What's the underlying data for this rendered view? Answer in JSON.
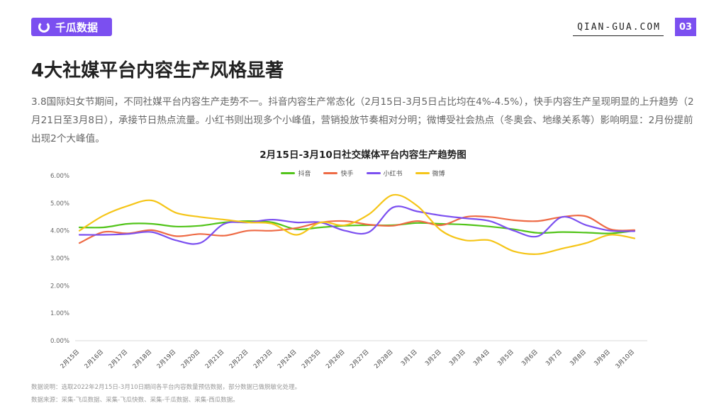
{
  "header": {
    "brand": "千瓜数据",
    "site": "QIAN-GUA.COM",
    "page_number": "03",
    "accent_color": "#7b4ff0"
  },
  "page": {
    "title": "4大社媒平台内容生产风格显著",
    "description": "3.8国际妇女节期间，不同社媒平台内容生产走势不一。抖音内容生产常态化（2月15日-3月5日占比均在4%-4.5%），快手内容生产呈现明显的上升趋势（2月21日至3月8日），承接节日热点流量。小红书则出现多个小峰值，营销投放节奏相对分明；微博受社会热点（冬奥会、地缘关系等）影响明显：2月份提前出现2个大峰值。"
  },
  "chart_data": {
    "type": "line",
    "title": "2月15日-3月10日社交媒体平台内容生产趋势图",
    "categories": [
      "2月15日",
      "2月16日",
      "2月17日",
      "2月18日",
      "2月19日",
      "2月20日",
      "2月21日",
      "2月22日",
      "2月23日",
      "2月24日",
      "2月25日",
      "2月26日",
      "2月27日",
      "2月28日",
      "3月1日",
      "3月2日",
      "3月3日",
      "3月4日",
      "3月5日",
      "3月6日",
      "3月7日",
      "3月8日",
      "3月9日",
      "3月10日"
    ],
    "yticks": [
      "0.00%",
      "1.00%",
      "2.00%",
      "3.00%",
      "4.00%",
      "5.00%",
      "6.00%"
    ],
    "ylim": [
      0,
      6
    ],
    "grid": false,
    "legend_position": "top-center",
    "series": [
      {
        "name": "抖音",
        "color": "#52c41a",
        "values": [
          4.12,
          4.12,
          4.25,
          4.25,
          4.15,
          4.18,
          4.3,
          4.35,
          4.3,
          4.05,
          4.12,
          4.18,
          4.2,
          4.2,
          4.28,
          4.25,
          4.22,
          4.15,
          4.05,
          3.92,
          3.95,
          3.93,
          3.9,
          4.0
        ]
      },
      {
        "name": "快手",
        "color": "#ee6a45",
        "values": [
          3.55,
          3.95,
          3.9,
          4.02,
          3.8,
          3.88,
          3.82,
          4.0,
          4.0,
          4.1,
          4.3,
          4.35,
          4.22,
          4.18,
          4.35,
          4.2,
          4.5,
          4.5,
          4.38,
          4.35,
          4.5,
          4.52,
          4.05,
          4.02
        ]
      },
      {
        "name": "小红书",
        "color": "#7b4ff0",
        "values": [
          3.85,
          3.85,
          3.88,
          3.95,
          3.65,
          3.55,
          4.25,
          4.3,
          4.4,
          4.3,
          4.3,
          4.0,
          3.95,
          4.85,
          4.7,
          4.55,
          4.45,
          4.35,
          4.0,
          3.8,
          4.5,
          4.2,
          4.0,
          3.98
        ]
      },
      {
        "name": "微博",
        "color": "#f5c518",
        "values": [
          4.0,
          4.55,
          4.9,
          5.1,
          4.65,
          4.5,
          4.4,
          4.3,
          4.25,
          3.85,
          4.3,
          4.2,
          4.6,
          5.3,
          4.9,
          4.0,
          3.65,
          3.65,
          3.25,
          3.15,
          3.35,
          3.55,
          3.85,
          3.72
        ]
      }
    ]
  },
  "notes": {
    "line1": "数据说明：选取2022年2月15日-3月10日期间各平台内容数量预估数据，部分数据已做脱敏化处理。",
    "line2": "数据来源：采集-飞瓜数据、采集-飞瓜快数、采集-千瓜数据、采集-西瓜数据。"
  }
}
